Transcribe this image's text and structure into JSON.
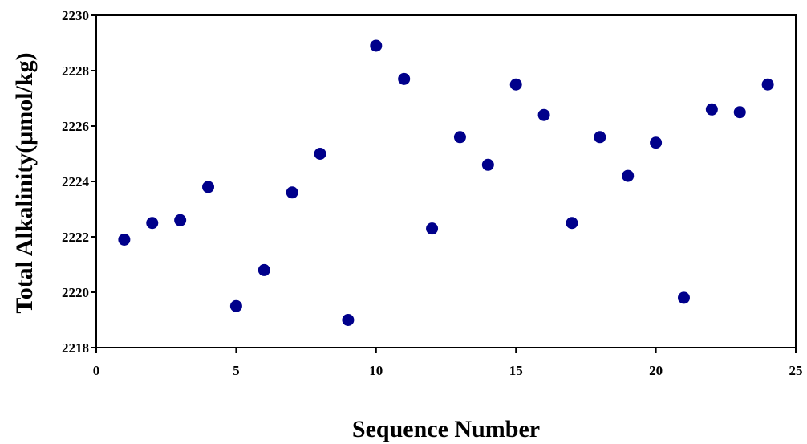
{
  "chart_data": {
    "type": "scatter",
    "title": "",
    "xlabel": "Sequence Number",
    "ylabel": "Total Alkalinity(μmol/kg)",
    "xlim": [
      0,
      25
    ],
    "ylim": [
      2218,
      2230
    ],
    "xticks": [
      0,
      5,
      10,
      15,
      20,
      25
    ],
    "yticks": [
      2218,
      2220,
      2222,
      2224,
      2226,
      2228,
      2230
    ],
    "grid": false,
    "legend": "none",
    "marker_color": "#00008B",
    "series": [
      {
        "x": [
          1,
          2,
          3,
          4,
          5,
          6,
          7,
          8,
          9,
          10,
          11,
          12,
          13,
          14,
          15,
          16,
          17,
          18,
          19,
          20,
          21,
          22,
          23,
          24
        ],
        "y": [
          2221.9,
          2222.5,
          2222.6,
          2223.8,
          2219.5,
          2220.8,
          2223.6,
          2225.0,
          2219.0,
          2228.9,
          2227.7,
          2222.3,
          2225.6,
          2224.6,
          2227.5,
          2226.4,
          2222.5,
          2225.6,
          2224.2,
          2225.4,
          2219.8,
          2226.6,
          2226.5,
          2227.5
        ]
      }
    ]
  }
}
